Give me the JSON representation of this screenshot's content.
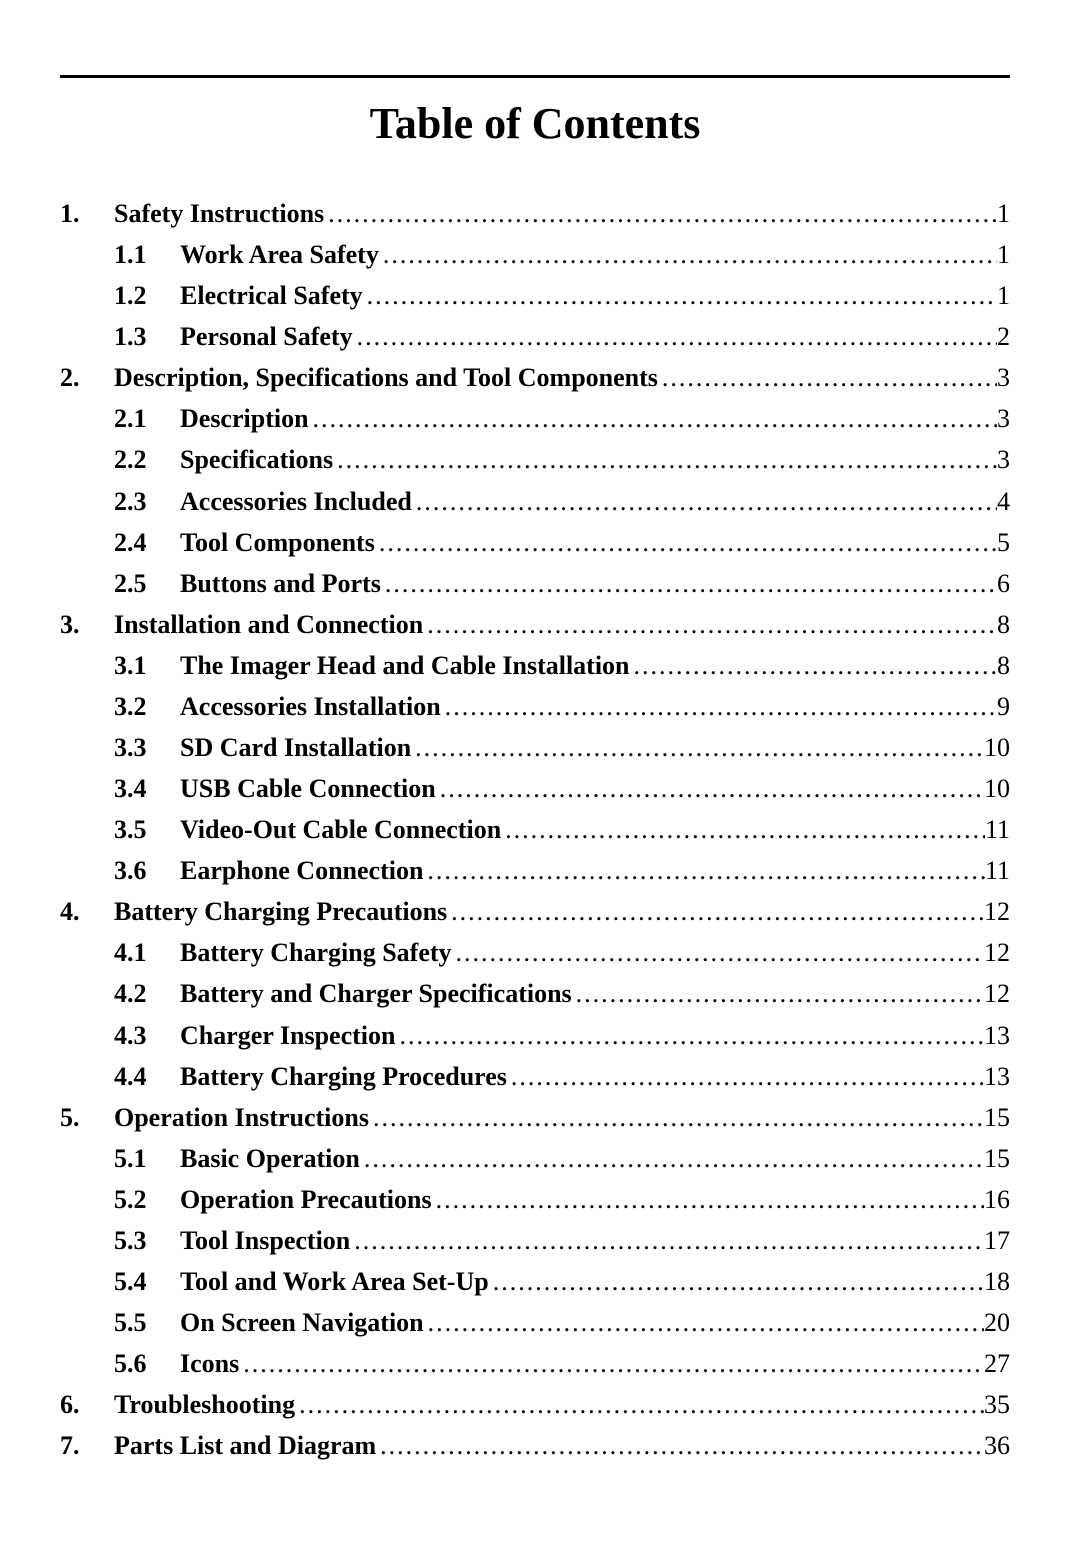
{
  "title": "Table of Contents",
  "sections": [
    {
      "num": "1.",
      "label": "Safety Instructions",
      "page": "1",
      "subs": [
        {
          "num": "1.1",
          "label": "Work Area Safety",
          "page": "1"
        },
        {
          "num": "1.2",
          "label": "Electrical Safety",
          "page": "1"
        },
        {
          "num": "1.3",
          "label": "Personal Safety",
          "page": "2"
        }
      ]
    },
    {
      "num": "2.",
      "label": "Description, Specifications and Tool Components",
      "page": "3",
      "subs": [
        {
          "num": "2.1",
          "label": "Description",
          "page": "3"
        },
        {
          "num": "2.2",
          "label": "Specifications",
          "page": "3"
        },
        {
          "num": "2.3",
          "label": "Accessories Included",
          "page": "4"
        },
        {
          "num": "2.4",
          "label": "Tool Components",
          "page": "5"
        },
        {
          "num": "2.5",
          "label": "Buttons and Ports",
          "page": "6"
        }
      ]
    },
    {
      "num": "3.",
      "label": "Installation and Connection",
      "page": "8",
      "subs": [
        {
          "num": "3.1",
          "label": "The Imager Head and Cable Installation",
          "page": "8"
        },
        {
          "num": "3.2",
          "label": "Accessories Installation",
          "page": "9"
        },
        {
          "num": "3.3",
          "label": "SD Card Installation",
          "page": "10"
        },
        {
          "num": "3.4",
          "label": "USB Cable Connection",
          "page": "10"
        },
        {
          "num": "3.5",
          "label": "Video-Out Cable Connection",
          "page": "11"
        },
        {
          "num": "3.6",
          "label": "Earphone Connection",
          "page": "11"
        }
      ]
    },
    {
      "num": "4.",
      "label": "Battery Charging Precautions",
      "page": "12",
      "subs": [
        {
          "num": "4.1",
          "label": "Battery Charging Safety",
          "page": "12"
        },
        {
          "num": "4.2",
          "label": "Battery and Charger Specifications",
          "page": "12"
        },
        {
          "num": "4.3",
          "label": "Charger Inspection",
          "page": "13"
        },
        {
          "num": "4.4",
          "label": "Battery Charging Procedures",
          "page": "13"
        }
      ]
    },
    {
      "num": "5.",
      "label": "Operation Instructions",
      "page": "15",
      "subs": [
        {
          "num": "5.1",
          "label": "Basic Operation",
          "page": "15"
        },
        {
          "num": "5.2",
          "label": "Operation Precautions",
          "page": "16"
        },
        {
          "num": "5.3",
          "label": "Tool Inspection",
          "page": "17"
        },
        {
          "num": "5.4",
          "label": "Tool and Work Area Set-Up",
          "page": "18"
        },
        {
          "num": "5.5",
          "label": "On Screen Navigation",
          "page": "20"
        },
        {
          "num": "5.6",
          "label": "Icons",
          "page": "27"
        }
      ]
    },
    {
      "num": "6.",
      "label": "Troubleshooting",
      "page": "35",
      "subs": []
    },
    {
      "num": "7.",
      "label": "Parts List and Diagram",
      "page": "36",
      "subs": []
    }
  ]
}
